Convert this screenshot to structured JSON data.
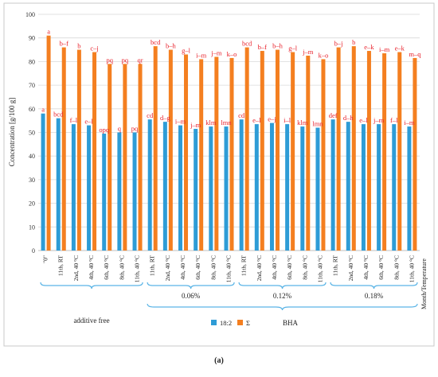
{
  "figure_label": "(a)",
  "chart_data": {
    "type": "bar",
    "ylabel": "Concentration [g/100 g]",
    "xlabel": "Month/Temperature",
    "ylim": [
      0,
      100
    ],
    "yticks": [
      0,
      10,
      20,
      30,
      40,
      50,
      60,
      70,
      80,
      90,
      100
    ],
    "grid": true,
    "legend_position": "bottom",
    "colors": {
      "series_0": "#2e9cd6",
      "series_1": "#f47f20",
      "letters": "#e8202a",
      "grid": "#d9d9d9",
      "brace": "#5ab4e6"
    },
    "categories": [
      "\"0\"",
      "11th, RT",
      "2nd, 40 °C",
      "4th, 40 °C",
      "6th, 40 °C",
      "8th, 40 °C",
      "11th, 40 °C",
      "11th, RT",
      "2nd, 40 °C",
      "4th, 40 °C",
      "6th, 40 °C",
      "8th, 40 °C",
      "11th, 40 °C",
      "11th, RT",
      "2nd, 40 °C",
      "4th, 40 °C",
      "6th, 40 °C",
      "8th, 40 °C",
      "11th, 40 °C",
      "11th, RT",
      "2nd, 40 °C",
      "4th, 40 °C",
      "6th, 40 °C",
      "8th, 40 °C",
      "11th, 40 °C"
    ],
    "series": [
      {
        "name": "18:2",
        "values": [
          58,
          56,
          53.5,
          53,
          49.5,
          50,
          50,
          55.5,
          54.5,
          53,
          51.5,
          52.5,
          52.5,
          55.5,
          53.5,
          54,
          53.5,
          52.5,
          52,
          55.5,
          54.5,
          53.5,
          53.5,
          53.5,
          52.5
        ],
        "letters": [
          "a",
          "bcd",
          "f–l",
          "e–l",
          "opq",
          "q",
          "pq",
          "cd",
          "d–g",
          "i–m",
          "j–m",
          "klm",
          "lmn",
          "cd",
          "e–l",
          "e–j",
          "i–l",
          "klm",
          "lmn",
          "def",
          "d–h",
          "e–l",
          "j–m",
          "f–l",
          "i–m"
        ]
      },
      {
        "name": "Σ",
        "values": [
          91,
          86,
          85,
          84,
          79,
          79,
          79,
          86.5,
          85,
          83,
          81,
          82,
          81.5,
          86,
          84.5,
          85,
          84,
          82.5,
          81,
          86,
          86.5,
          84.5,
          83.5,
          84,
          81.5
        ],
        "letters": [
          "a",
          "b–f",
          "b",
          "c–j",
          "pq",
          "pq",
          "qr",
          "bcd",
          "b–h",
          "g–l",
          "i–m",
          "j–m",
          "k–o",
          "bcd",
          "b–f",
          "b–h",
          "g–l",
          "j–m",
          "k–o",
          "b–j",
          "b",
          "e–k",
          "i–m",
          "e–k",
          "m–q"
        ]
      }
    ],
    "groups": [
      {
        "label": "additive free",
        "start": 0,
        "end": 6
      },
      {
        "label": "0.06%",
        "start": 7,
        "end": 12
      },
      {
        "label": "0.12%",
        "start": 13,
        "end": 18
      },
      {
        "label": "0.18%",
        "start": 19,
        "end": 24
      }
    ],
    "bracket_label": "BHA"
  }
}
